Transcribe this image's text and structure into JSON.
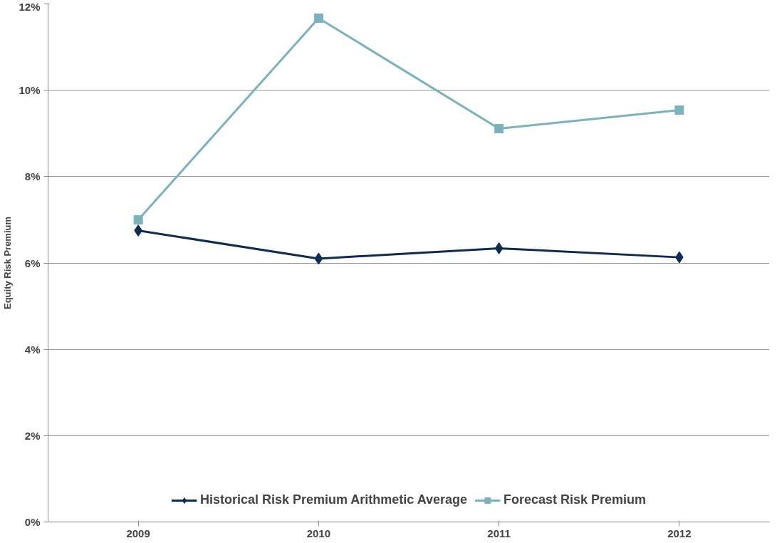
{
  "chart_data": {
    "type": "line",
    "ylabel": "Equity Risk Premium",
    "categories": [
      "2009",
      "2010",
      "2011",
      "2012"
    ],
    "series": [
      {
        "name": "Historical Risk Premium Arithmetic Average",
        "color": "#0d2c54",
        "marker": "diamond",
        "values": [
          6.75,
          6.1,
          6.34,
          6.13
        ]
      },
      {
        "name": "Forecast Risk Premium",
        "color": "#7ab3bd",
        "marker": "square",
        "values": [
          7.0,
          11.67,
          9.11,
          9.54
        ]
      }
    ],
    "ylim": [
      0,
      12
    ],
    "yticks": [
      {
        "value": 0,
        "label": "0%"
      },
      {
        "value": 2,
        "label": "2%"
      },
      {
        "value": 4,
        "label": "4%"
      },
      {
        "value": 6,
        "label": "6%"
      },
      {
        "value": 8,
        "label": "8%"
      },
      {
        "value": 10,
        "label": "10%"
      },
      {
        "value": 12,
        "label": "12%"
      }
    ],
    "grid": "y",
    "legend": "bottom",
    "line_style": "solid"
  }
}
